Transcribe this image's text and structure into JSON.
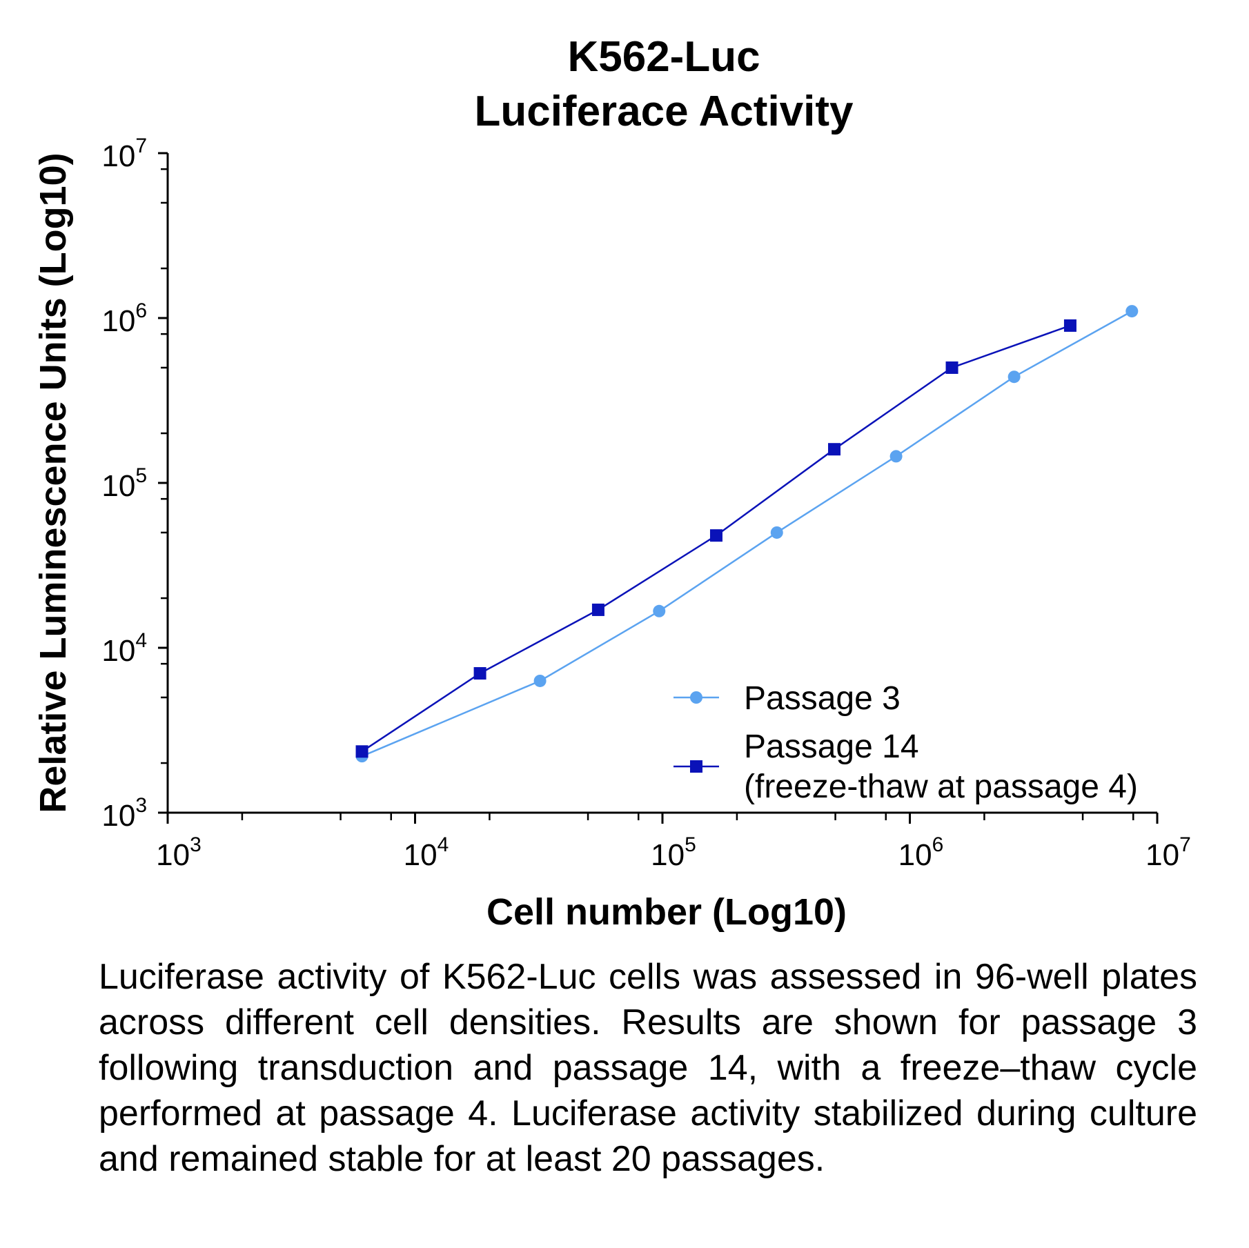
{
  "chart_data": {
    "type": "line",
    "title": "K562-Luc",
    "subtitle": "Luciferace Activity",
    "xlabel": "Cell number (Log10)",
    "ylabel": "Relative Luminescence Units (Log10)",
    "x_scale": "log10",
    "y_scale": "log10",
    "xlim": [
      1000,
      10000000
    ],
    "ylim": [
      1000,
      10000000
    ],
    "x_ticks": [
      {
        "base": "10",
        "exp": "3",
        "value": 1000
      },
      {
        "base": "10",
        "exp": "4",
        "value": 10000
      },
      {
        "base": "10",
        "exp": "5",
        "value": 100000
      },
      {
        "base": "10",
        "exp": "6",
        "value": 1000000
      },
      {
        "base": "10",
        "exp": "7",
        "value": 10000000
      }
    ],
    "y_ticks": [
      {
        "base": "10",
        "exp": "3",
        "value": 1000
      },
      {
        "base": "10",
        "exp": "4",
        "value": 10000
      },
      {
        "base": "10",
        "exp": "5",
        "value": 100000
      },
      {
        "base": "10",
        "exp": "6",
        "value": 1000000
      },
      {
        "base": "10",
        "exp": "7",
        "value": 10000000
      }
    ],
    "grid": false,
    "legend": {
      "placement": "bottom-right"
    },
    "series": [
      {
        "name": "Passage 3",
        "marker": "circle",
        "color": "#5ba3f0",
        "x": [
          6100,
          32000,
          97000,
          290000,
          880000,
          2640000,
          7900000
        ],
        "y": [
          2200,
          6300,
          16700,
          50000,
          145000,
          440000,
          1100000
        ]
      },
      {
        "name": "Passage 14",
        "name_line2": "(freeze-thaw at passage 4)",
        "marker": "square",
        "color": "#0a12b8",
        "x": [
          6100,
          18300,
          55000,
          165000,
          495000,
          1480000,
          4450000
        ],
        "y": [
          2350,
          7000,
          17000,
          48000,
          160000,
          500000,
          900000
        ]
      }
    ]
  },
  "caption": "Luciferase activity of K562-Luc cells was assessed in 96-well plates across different cell densities. Results are shown for passage 3 following transduction and passage 14, with a freeze–thaw cycle performed at passage 4. Luciferase activity stabilized during culture and remained stable for at least 20 passages."
}
